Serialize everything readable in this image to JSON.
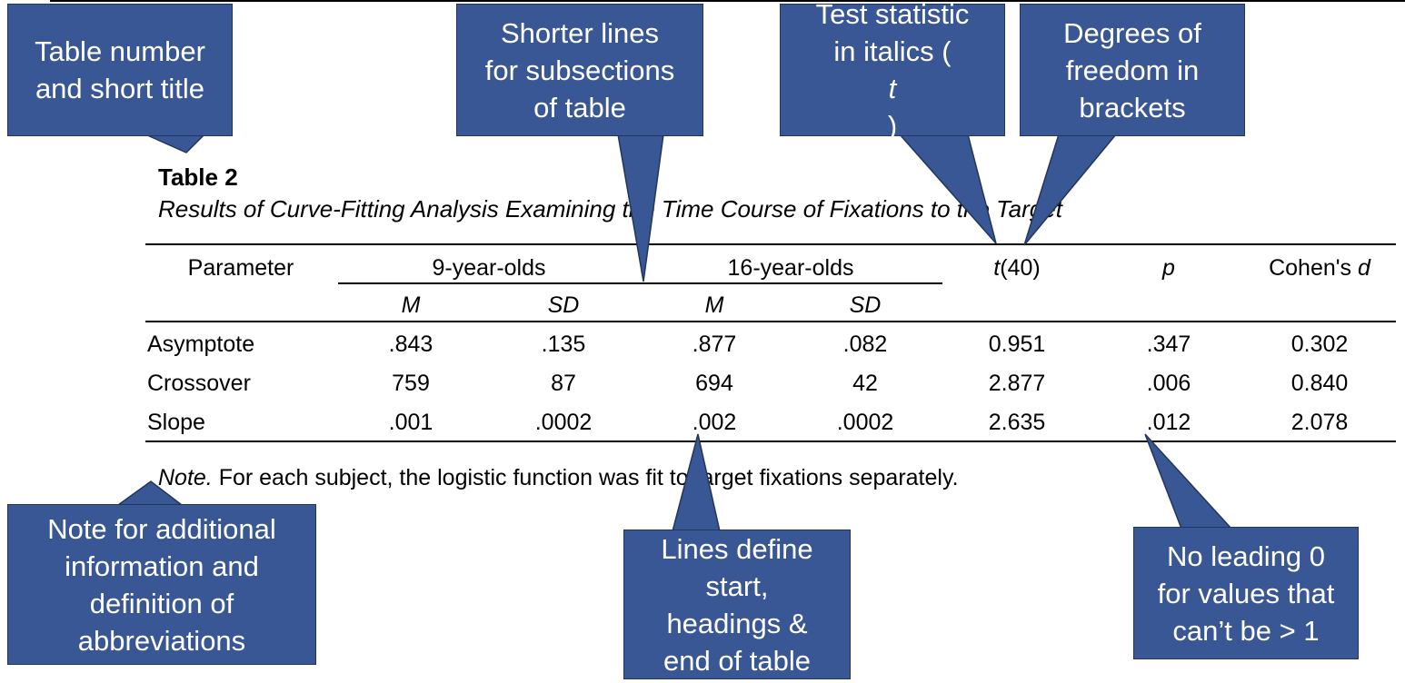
{
  "table": {
    "number": "Table 2",
    "title": "Results of Curve-Fitting Analysis Examining the Time Course of Fixations to the Target",
    "headers": {
      "parameter": "Parameter",
      "group1": "9-year-olds",
      "group2": "16-year-olds",
      "t_stat": "t",
      "t_df": "(40)",
      "p": "p",
      "cohens": "Cohen's ",
      "cohens_d": "d",
      "m1": "M",
      "sd1": "SD",
      "m2": "M",
      "sd2": "SD"
    },
    "rows": [
      {
        "name": "Asymptote",
        "m1": ".843",
        "sd1": ".135",
        "m2": ".877",
        "sd2": ".082",
        "t": "0.951",
        "p": ".347",
        "d": "0.302"
      },
      {
        "name": "Crossover",
        "m1": "759",
        "sd1": "87",
        "m2": "694",
        "sd2": "42",
        "t": "2.877",
        "p": ".006",
        "d": "0.840"
      },
      {
        "name": "Slope",
        "m1": ".001",
        "sd1": ".0002",
        "m2": ".002",
        "sd2": ".0002",
        "t": "2.635",
        "p": ".012",
        "d": "2.078"
      }
    ],
    "note_label": "Note.",
    "note_text": " For each subject, the logistic function was fit to target fixations separately."
  },
  "callouts": {
    "table_number": {
      "line1": "Table number",
      "line2": "and short title"
    },
    "shorter_lines": {
      "line1": "Shorter lines",
      "line2": "for subsections",
      "line3": "of table"
    },
    "test_statistic": {
      "line1": "Test statistic",
      "line2_pre": "in italics (",
      "line2_ital": "t",
      "line2_post": ")"
    },
    "degrees_freedom": {
      "line1": "Degrees of",
      "line2": "freedom in",
      "line3": "brackets"
    },
    "note_info": {
      "line1": "Note for additional",
      "line2": "information and",
      "line3": "definition of",
      "line4": "abbreviations"
    },
    "lines_define": {
      "line1": "Lines define",
      "line2": "start,",
      "line3": "headings &",
      "line4": "end of table"
    },
    "leading_zero": {
      "line1": "No leading 0",
      "line2": "for values that",
      "line3": "can’t be > 1"
    }
  },
  "colors": {
    "callout_fill": "#3a5795",
    "callout_text": "#ffffff"
  }
}
